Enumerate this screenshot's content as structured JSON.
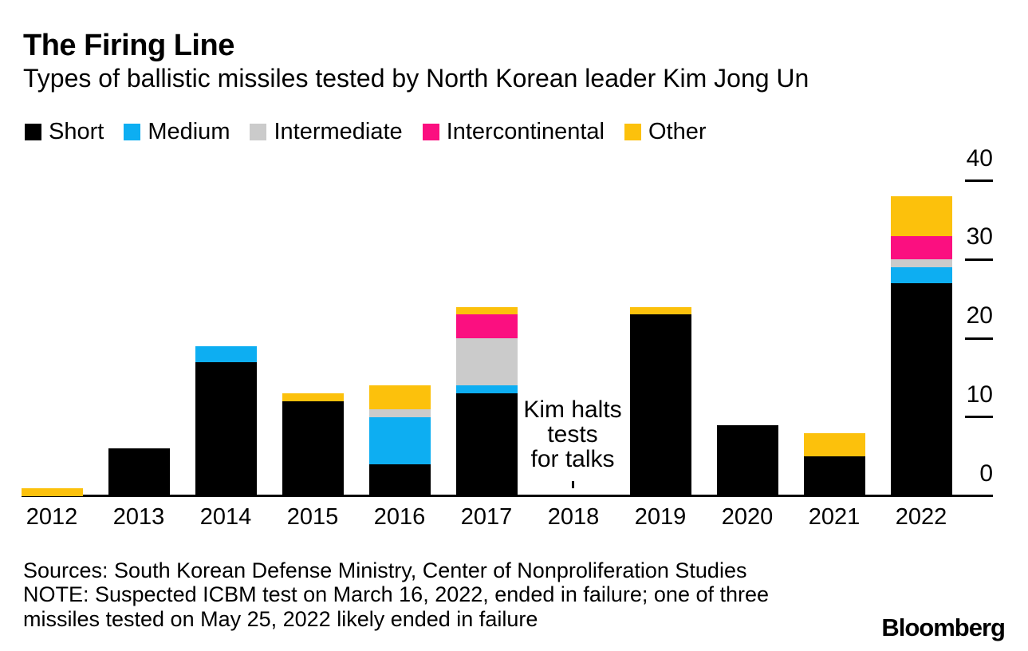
{
  "header": {
    "title": "The Firing Line",
    "subtitle": "Types of ballistic missiles tested by North Korean leader Kim Jong Un"
  },
  "legend": [
    {
      "label": "Short",
      "color": "#000000"
    },
    {
      "label": "Medium",
      "color": "#0daef2"
    },
    {
      "label": "Intermediate",
      "color": "#cbcbcb"
    },
    {
      "label": "Intercontinental",
      "color": "#fb0f80"
    },
    {
      "label": "Other",
      "color": "#fcc10c"
    }
  ],
  "chart_data": {
    "type": "bar",
    "stacked": true,
    "title": "The Firing Line",
    "subtitle": "Types of ballistic missiles tested by North Korean leader Kim Jong Un",
    "categories": [
      "2012",
      "2013",
      "2014",
      "2015",
      "2016",
      "2017",
      "2018",
      "2019",
      "2020",
      "2021",
      "2022"
    ],
    "series": [
      {
        "name": "Short",
        "color": "#000000",
        "values": [
          0,
          6,
          17,
          12,
          4,
          13,
          0,
          23,
          9,
          5,
          27
        ]
      },
      {
        "name": "Medium",
        "color": "#0daef2",
        "values": [
          0,
          0,
          2,
          0,
          6,
          1,
          0,
          0,
          0,
          0,
          2
        ]
      },
      {
        "name": "Intermediate",
        "color": "#cbcbcb",
        "values": [
          0,
          0,
          0,
          0,
          1,
          6,
          0,
          0,
          0,
          0,
          1
        ]
      },
      {
        "name": "Intercontinental",
        "color": "#fb0f80",
        "values": [
          0,
          0,
          0,
          0,
          0,
          3,
          0,
          0,
          0,
          0,
          3
        ]
      },
      {
        "name": "Other",
        "color": "#fcc10c",
        "values": [
          1,
          0,
          0,
          1,
          3,
          1,
          0,
          1,
          0,
          3,
          5
        ]
      }
    ],
    "totals": [
      1,
      6,
      19,
      13,
      14,
      24,
      0,
      24,
      9,
      8,
      38
    ],
    "yticks": [
      0,
      10,
      20,
      30,
      40
    ],
    "ylim": [
      0,
      43
    ],
    "grid": false,
    "legend_position": "top",
    "yaxis_side": "right",
    "annotation": {
      "text": "Kim halts tests for talks",
      "lines": [
        "Kim halts",
        "tests",
        "for talks"
      ],
      "x_category": "2018"
    }
  },
  "annotation": {
    "lines": [
      "Kim halts",
      "tests",
      "for talks"
    ]
  },
  "footer": {
    "sources": "Sources: South Korean Defense Ministry, Center of Nonproliferation Studies",
    "note_lines": [
      "NOTE: Suspected ICBM test on March 16, 2022, ended in failure; one of three",
      "missiles tested on May 25, 2022 likely ended in failure"
    ],
    "brand": "Bloomberg"
  }
}
